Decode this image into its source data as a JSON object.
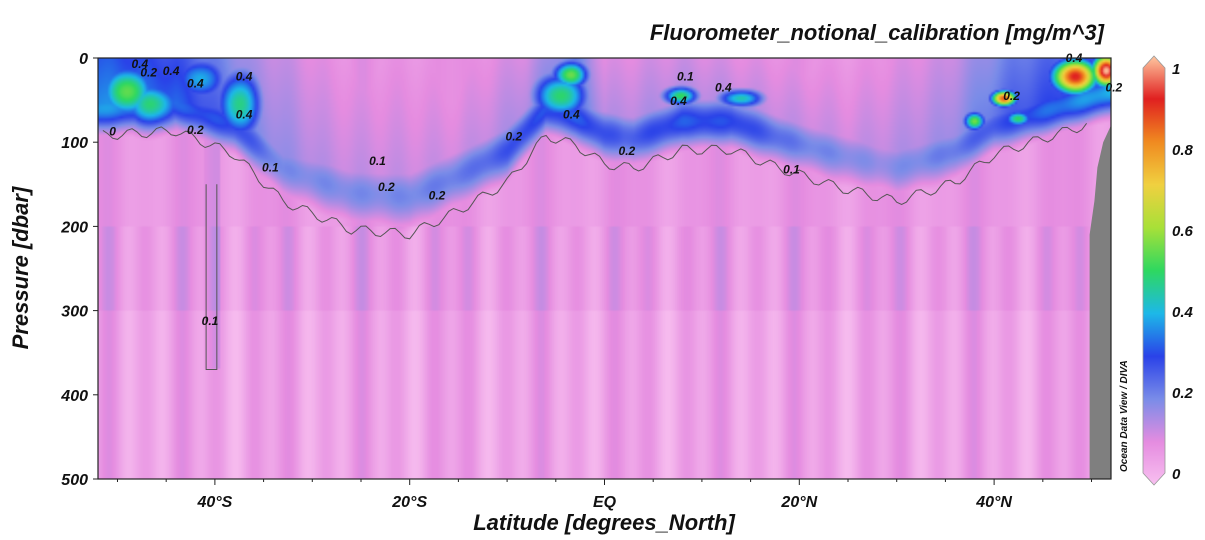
{
  "chart_data": {
    "type": "heatmap",
    "title": "Fluorometer_notional_calibration [mg/m^3]",
    "xlabel": "Latitude [degrees_North]",
    "ylabel": "Pressure [dbar]",
    "xlim": [
      -52,
      52
    ],
    "ylim": [
      500,
      0
    ],
    "y_reversed": true,
    "x_ticks": [
      {
        "value": -40,
        "label": "40°S"
      },
      {
        "value": -20,
        "label": "20°S"
      },
      {
        "value": 0,
        "label": "EQ"
      },
      {
        "value": 20,
        "label": "20°N"
      },
      {
        "value": 40,
        "label": "40°N"
      }
    ],
    "y_ticks": [
      {
        "value": 0,
        "label": "0"
      },
      {
        "value": 100,
        "label": "100"
      },
      {
        "value": 200,
        "label": "200"
      },
      {
        "value": 300,
        "label": "300"
      },
      {
        "value": 400,
        "label": "400"
      },
      {
        "value": 500,
        "label": "500"
      }
    ],
    "colorbar": {
      "range": [
        0,
        1
      ],
      "ticks": [
        {
          "value": 0,
          "label": "0"
        },
        {
          "value": 0.2,
          "label": "0.2"
        },
        {
          "value": 0.4,
          "label": "0.4"
        },
        {
          "value": 0.6,
          "label": "0.6"
        },
        {
          "value": 0.8,
          "label": "0.8"
        },
        {
          "value": 1,
          "label": "1"
        }
      ],
      "colors": [
        "#f8c0f0",
        "#e58ce0",
        "#7a8ce8",
        "#2a42e8",
        "#1db8e8",
        "#2ed860",
        "#a8e038",
        "#f0d040",
        "#f08a20",
        "#e02020",
        "#ffc8a0"
      ]
    },
    "contour_levels": [
      0.1,
      0.2,
      0.4
    ],
    "contour_labels": [
      {
        "lat": -50.5,
        "p": 92,
        "label": "0"
      },
      {
        "lat": -47.7,
        "p": 12,
        "label": "0.4"
      },
      {
        "lat": -46.8,
        "p": 22,
        "label": "0.2"
      },
      {
        "lat": -44.5,
        "p": 20,
        "label": "0.4"
      },
      {
        "lat": -42.0,
        "p": 35,
        "label": "0.4"
      },
      {
        "lat": -37.0,
        "p": 27,
        "label": "0.4"
      },
      {
        "lat": -37.0,
        "p": 72,
        "label": "0.4"
      },
      {
        "lat": -42.0,
        "p": 90,
        "label": "0.2"
      },
      {
        "lat": -34.3,
        "p": 135,
        "label": "0.1"
      },
      {
        "lat": -23.3,
        "p": 127,
        "label": "0.1"
      },
      {
        "lat": -22.4,
        "p": 158,
        "label": "0.2"
      },
      {
        "lat": -17.2,
        "p": 168,
        "label": "0.2"
      },
      {
        "lat": -9.3,
        "p": 98,
        "label": "0.2"
      },
      {
        "lat": -3.4,
        "p": 72,
        "label": "0.4"
      },
      {
        "lat": 2.3,
        "p": 115,
        "label": "0.2"
      },
      {
        "lat": 8.3,
        "p": 27,
        "label": "0.1"
      },
      {
        "lat": 7.6,
        "p": 56,
        "label": "0.4"
      },
      {
        "lat": 12.2,
        "p": 40,
        "label": "0.4"
      },
      {
        "lat": 19.2,
        "p": 137,
        "label": "0.1"
      },
      {
        "lat": -40.5,
        "p": 317,
        "label": "0.1"
      },
      {
        "lat": 41.8,
        "p": 50,
        "label": "0.2"
      },
      {
        "lat": 48.2,
        "p": 5,
        "label": "0.4"
      },
      {
        "lat": 52.3,
        "p": 40,
        "label": "0.2"
      }
    ],
    "hotspots": [
      {
        "lat": -49,
        "p": 40,
        "v": 0.55,
        "w": 3,
        "h": 35
      },
      {
        "lat": -46.5,
        "p": 55,
        "v": 0.48,
        "w": 3.5,
        "h": 30
      },
      {
        "lat": -41.5,
        "p": 25,
        "v": 0.4,
        "w": 3,
        "h": 30
      },
      {
        "lat": -37.5,
        "p": 55,
        "v": 0.48,
        "w": 2.5,
        "h": 45
      },
      {
        "lat": -4.5,
        "p": 45,
        "v": 0.5,
        "w": 3,
        "h": 30
      },
      {
        "lat": -3.5,
        "p": 20,
        "v": 0.55,
        "w": 2,
        "h": 18
      },
      {
        "lat": 7.8,
        "p": 45,
        "v": 0.5,
        "w": 2,
        "h": 12
      },
      {
        "lat": 14,
        "p": 48,
        "v": 0.45,
        "w": 2.5,
        "h": 12
      },
      {
        "lat": 41,
        "p": 48,
        "v": 0.85,
        "w": 1.4,
        "h": 10
      },
      {
        "lat": 38,
        "p": 75,
        "v": 0.55,
        "w": 1.2,
        "h": 12
      },
      {
        "lat": 42.5,
        "p": 72,
        "v": 0.5,
        "w": 1.5,
        "h": 10
      },
      {
        "lat": 48.3,
        "p": 22,
        "v": 0.9,
        "w": 2.5,
        "h": 22
      },
      {
        "lat": 51.5,
        "p": 15,
        "v": 1.0,
        "w": 1.5,
        "h": 20
      }
    ],
    "land": "grey seafloor north of ~49.5°N below ~100 dbar"
  },
  "credit": "Ocean Data View / DIVA"
}
